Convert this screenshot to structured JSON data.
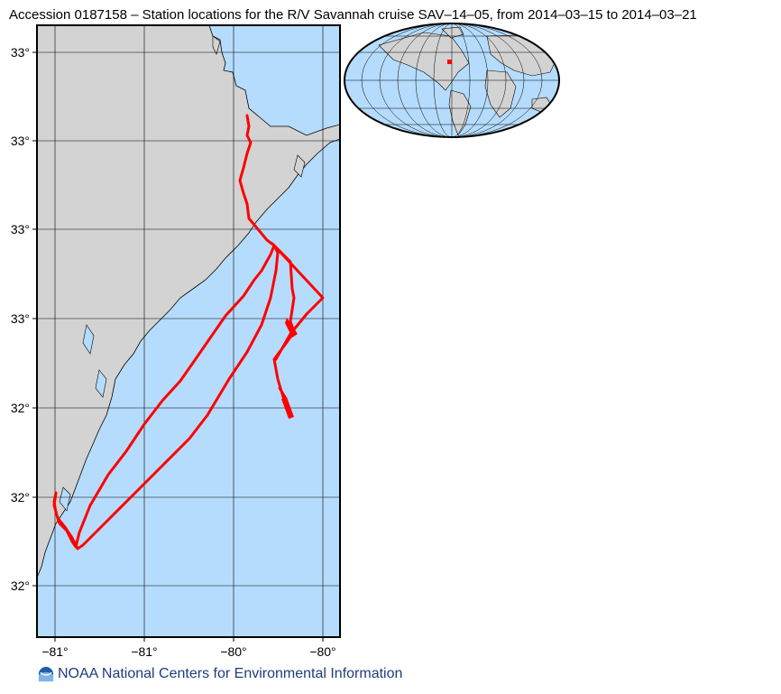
{
  "title": "Accession 0187158 – Station locations for the R/V Savannah cruise SAV–14–05, from 2014–03–15 to 2014–03–21",
  "footer": "NOAA National Centers for Environmental Information",
  "colors": {
    "land": "#d3d3d3",
    "water": "#b5dcfc",
    "track": "#ff0000",
    "grid": "#000000"
  },
  "axes": {
    "x_ticks": [
      "−81°",
      "−81°",
      "−80°",
      "−80°"
    ],
    "y_ticks": [
      "33°",
      "33°",
      "33°",
      "33°",
      "32°",
      "32°",
      "32°"
    ]
  },
  "inset": {
    "type": "mollweide-world-globe",
    "marker_color": "#ff0000"
  },
  "icons": {
    "logo": "noaa-logo-icon"
  }
}
